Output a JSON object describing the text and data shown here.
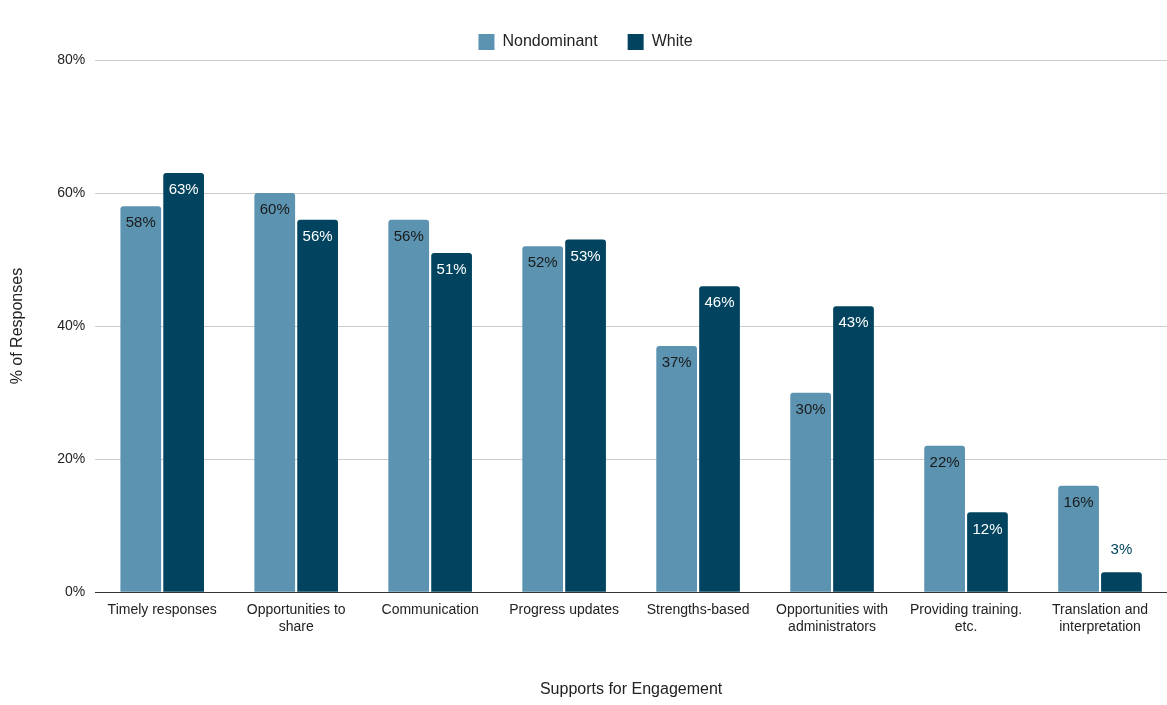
{
  "chart_data": {
    "type": "bar",
    "xlabel": "Supports for Engagement",
    "ylabel": "% of Responses",
    "categories": [
      "Timely responses",
      "Opportunities to share",
      "Communication",
      "Progress updates",
      "Strengths-based",
      "Opportunities with administrators",
      "Providing training. etc.",
      "Translation and interpretation"
    ],
    "series": [
      {
        "name": "Nondominant",
        "color": "#5b93b0",
        "values": [
          58,
          60,
          56,
          52,
          37,
          30,
          22,
          16
        ],
        "value_labels": [
          "58%",
          "60%",
          "56%",
          "52%",
          "37%",
          "30%",
          "22%",
          "16%"
        ]
      },
      {
        "name": "White",
        "color": "#02445f",
        "values": [
          63,
          56,
          51,
          53,
          46,
          43,
          12,
          3
        ],
        "value_labels": [
          "63%",
          "56%",
          "51%",
          "53%",
          "46%",
          "43%",
          "12%",
          "3%"
        ]
      }
    ],
    "ylim": [
      0,
      80
    ],
    "yticks": [
      {
        "value": 0,
        "label": "0%"
      },
      {
        "value": 20,
        "label": "20%"
      },
      {
        "value": 40,
        "label": "40%"
      },
      {
        "value": 60,
        "label": "60%"
      },
      {
        "value": 80,
        "label": "80%"
      }
    ],
    "grid": "y",
    "legend": "top"
  }
}
